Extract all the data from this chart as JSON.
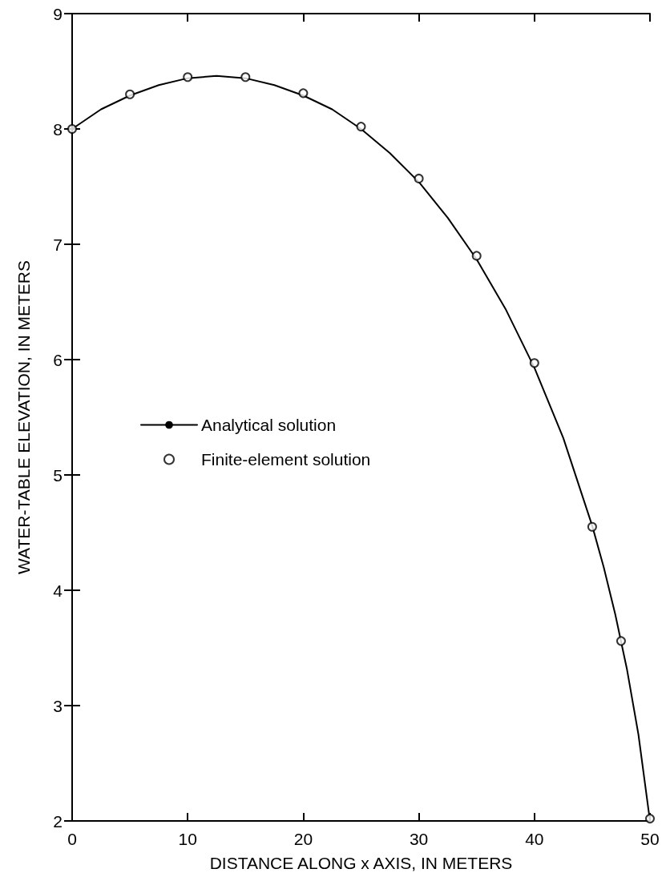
{
  "chart_data": {
    "type": "line",
    "xlabel": "DISTANCE ALONG x AXIS, IN METERS",
    "ylabel": "WATER-TABLE ELEVATION, IN METERS",
    "xlim": [
      0,
      50
    ],
    "xticks": [
      0,
      10,
      20,
      30,
      40,
      50
    ],
    "ylim": [
      2,
      9
    ],
    "yticks": [
      2,
      3,
      4,
      5,
      6,
      7,
      8,
      9
    ],
    "grid": false,
    "legend": "left",
    "series": [
      {
        "name": "Analytical solution",
        "marker": "none",
        "line_style": "solid",
        "color": "#000000",
        "x": [
          0,
          2.5,
          5,
          7.5,
          10,
          12.5,
          15,
          17.5,
          20,
          22.5,
          25,
          27.5,
          30,
          32.5,
          35,
          37.5,
          40,
          42.5,
          45,
          46,
          47,
          48,
          49,
          50
        ],
        "values": [
          8.0,
          8.17,
          8.29,
          8.38,
          8.44,
          8.46,
          8.44,
          8.38,
          8.29,
          8.17,
          8.0,
          7.79,
          7.54,
          7.23,
          6.87,
          6.44,
          5.93,
          5.32,
          4.56,
          4.2,
          3.79,
          3.32,
          2.75,
          2.0
        ]
      },
      {
        "name": "Finite-element solution",
        "type": "scatter",
        "marker": "circle",
        "color": "#000000",
        "x": [
          0,
          5,
          10,
          15,
          20,
          25,
          30,
          35,
          40,
          45,
          47.5,
          50
        ],
        "values": [
          8.0,
          8.3,
          8.45,
          8.45,
          8.31,
          8.02,
          7.57,
          6.9,
          5.97,
          4.55,
          3.56,
          2.02
        ]
      }
    ]
  }
}
